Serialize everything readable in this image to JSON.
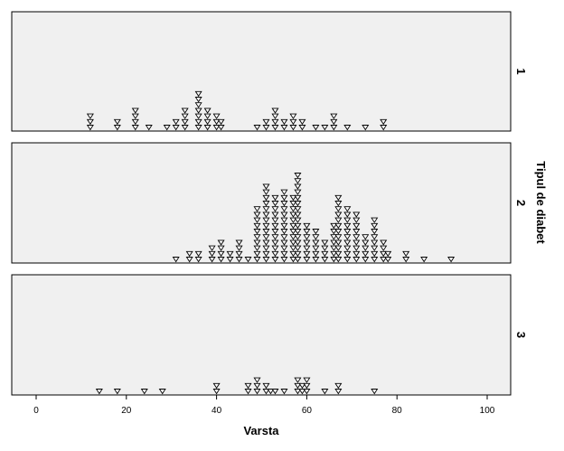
{
  "chart_data": {
    "type": "scatter",
    "subtype": "stacked dot plot (paneled)",
    "marker": "inverted-triangle",
    "xlabel": "Varsta",
    "ylabel": "Tipul de diabet",
    "xlim": [
      -5,
      105
    ],
    "xticks": [
      0,
      20,
      40,
      60,
      80,
      100
    ],
    "xtick_labels": [
      "0",
      "20",
      "40",
      "60",
      "80",
      "100"
    ],
    "panels": [
      {
        "label": "1",
        "stacks": [
          {
            "x": 12,
            "n": 3
          },
          {
            "x": 18,
            "n": 2
          },
          {
            "x": 22,
            "n": 4
          },
          {
            "x": 25,
            "n": 1
          },
          {
            "x": 29,
            "n": 1
          },
          {
            "x": 31,
            "n": 2
          },
          {
            "x": 33,
            "n": 4
          },
          {
            "x": 36,
            "n": 7
          },
          {
            "x": 38,
            "n": 4
          },
          {
            "x": 40,
            "n": 3
          },
          {
            "x": 41,
            "n": 2
          },
          {
            "x": 49,
            "n": 1
          },
          {
            "x": 51,
            "n": 2
          },
          {
            "x": 53,
            "n": 4
          },
          {
            "x": 55,
            "n": 2
          },
          {
            "x": 57,
            "n": 3
          },
          {
            "x": 59,
            "n": 2
          },
          {
            "x": 62,
            "n": 1
          },
          {
            "x": 64,
            "n": 1
          },
          {
            "x": 66,
            "n": 3
          },
          {
            "x": 69,
            "n": 1
          },
          {
            "x": 73,
            "n": 1
          },
          {
            "x": 77,
            "n": 2
          }
        ]
      },
      {
        "label": "2",
        "stacks": [
          {
            "x": 31,
            "n": 1
          },
          {
            "x": 34,
            "n": 2
          },
          {
            "x": 36,
            "n": 2
          },
          {
            "x": 39,
            "n": 3
          },
          {
            "x": 41,
            "n": 4
          },
          {
            "x": 43,
            "n": 2
          },
          {
            "x": 45,
            "n": 4
          },
          {
            "x": 47,
            "n": 1
          },
          {
            "x": 49,
            "n": 10
          },
          {
            "x": 51,
            "n": 14
          },
          {
            "x": 53,
            "n": 12
          },
          {
            "x": 55,
            "n": 13
          },
          {
            "x": 57,
            "n": 12
          },
          {
            "x": 58,
            "n": 16
          },
          {
            "x": 60,
            "n": 7
          },
          {
            "x": 62,
            "n": 6
          },
          {
            "x": 64,
            "n": 4
          },
          {
            "x": 66,
            "n": 7
          },
          {
            "x": 67,
            "n": 12
          },
          {
            "x": 69,
            "n": 10
          },
          {
            "x": 71,
            "n": 9
          },
          {
            "x": 73,
            "n": 5
          },
          {
            "x": 75,
            "n": 8
          },
          {
            "x": 77,
            "n": 4
          },
          {
            "x": 78,
            "n": 2
          },
          {
            "x": 82,
            "n": 2
          },
          {
            "x": 86,
            "n": 1
          },
          {
            "x": 92,
            "n": 1
          }
        ]
      },
      {
        "label": "3",
        "stacks": [
          {
            "x": 14,
            "n": 1
          },
          {
            "x": 18,
            "n": 1
          },
          {
            "x": 24,
            "n": 1
          },
          {
            "x": 28,
            "n": 1
          },
          {
            "x": 40,
            "n": 2
          },
          {
            "x": 47,
            "n": 2
          },
          {
            "x": 49,
            "n": 3
          },
          {
            "x": 51,
            "n": 2
          },
          {
            "x": 52,
            "n": 1
          },
          {
            "x": 53,
            "n": 1
          },
          {
            "x": 55,
            "n": 1
          },
          {
            "x": 58,
            "n": 3
          },
          {
            "x": 59,
            "n": 2
          },
          {
            "x": 60,
            "n": 3
          },
          {
            "x": 64,
            "n": 1
          },
          {
            "x": 67,
            "n": 2
          },
          {
            "x": 75,
            "n": 1
          }
        ]
      }
    ],
    "grid": false,
    "colors": {
      "background": "#f0f0f0",
      "marker_fill": "#ffffff",
      "marker_stroke": "#000000"
    }
  }
}
